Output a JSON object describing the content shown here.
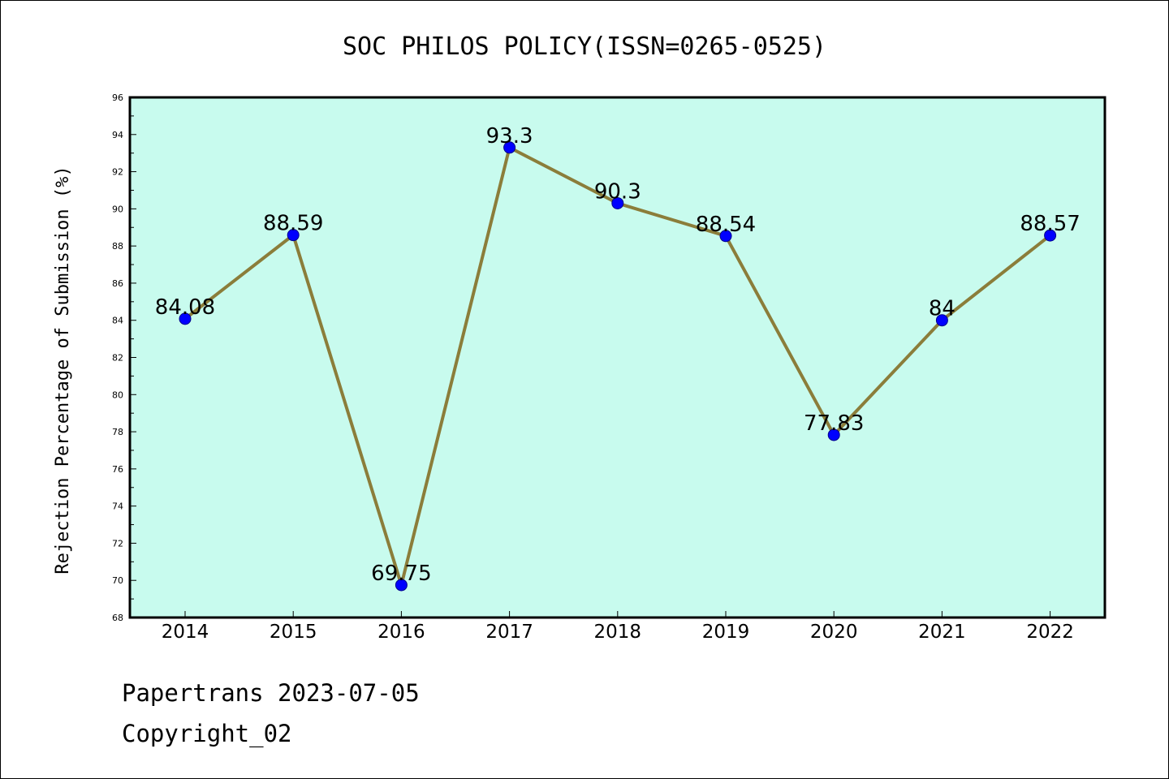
{
  "chart_data": {
    "type": "line",
    "title": "SOC PHILOS POLICY(ISSN=0265-0525)",
    "xlabel": "",
    "ylabel": "Rejection Percentage of Submission (%)",
    "categories": [
      "2014",
      "2015",
      "2016",
      "2017",
      "2018",
      "2019",
      "2020",
      "2021",
      "2022"
    ],
    "values": [
      84.08,
      88.59,
      69.75,
      93.3,
      90.3,
      88.54,
      77.83,
      84,
      88.57
    ],
    "data_labels": [
      "84.08",
      "88.59",
      "69.75",
      "93.3",
      "90.3",
      "88.54",
      "77.83",
      "84",
      "88.57"
    ],
    "ylim": [
      68,
      96
    ],
    "yticks": [
      "68",
      "70",
      "72",
      "74",
      "76",
      "78",
      "80",
      "82",
      "84",
      "86",
      "88",
      "90",
      "92",
      "94",
      "96"
    ],
    "grid": false,
    "plot_background": "#c8fbee",
    "line_color": "#8b7d3a",
    "marker_color": "#0000ff"
  },
  "footer": {
    "line1": "Papertrans 2023-07-05",
    "line2": "Copyright_02"
  }
}
